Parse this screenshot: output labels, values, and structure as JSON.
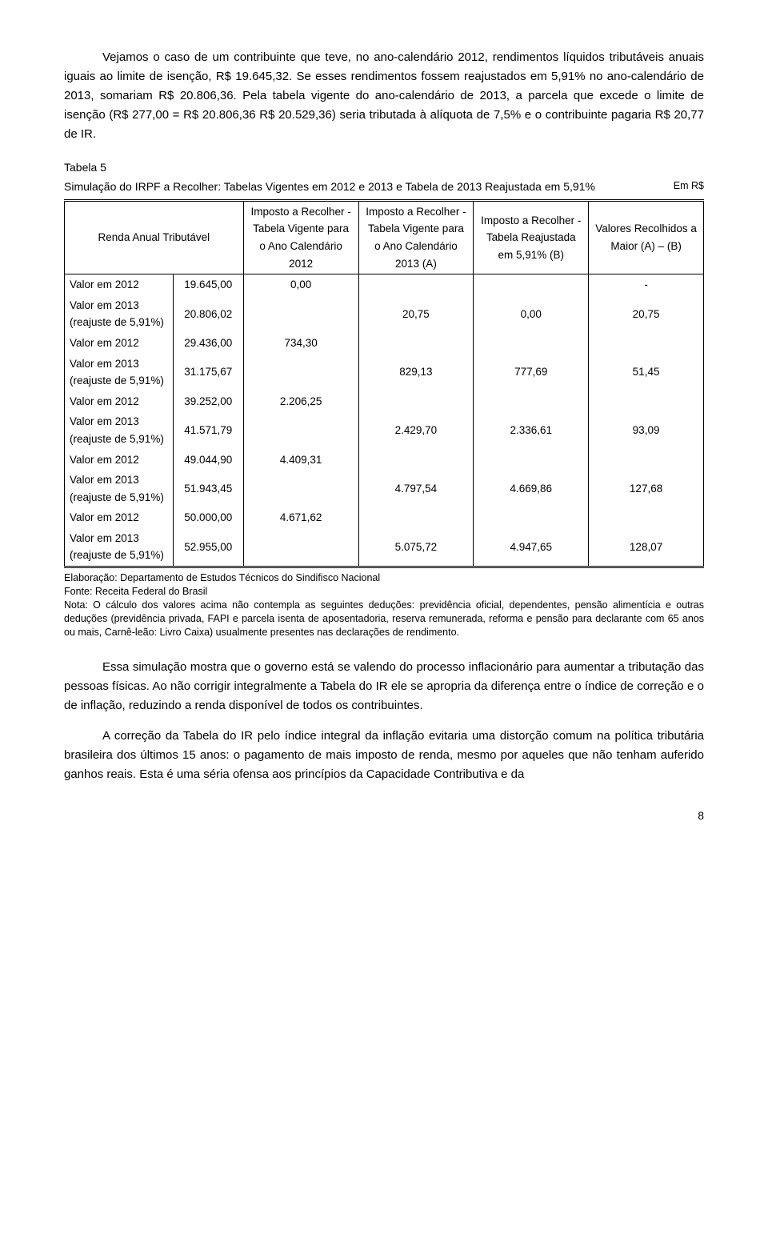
{
  "paragraphs": {
    "p1": "Vejamos o caso de um contribuinte que teve, no ano-calendário 2012, rendimentos líquidos tributáveis anuais iguais ao limite de isenção, R$ 19.645,32. Se esses rendimentos fossem reajustados em 5,91% no ano-calendário de 2013, somariam R$ 20.806,36. Pela tabela vigente do ano-calendário de 2013, a parcela que excede o limite de isenção (R$ 277,00 = R$ 20.806,36 R$ 20.529,36) seria tributada à alíquota de 7,5% e o contribuinte pagaria R$ 20,77 de IR.",
    "p2": "Essa simulação mostra que o governo está se valendo do processo inflacionário para aumentar a tributação das pessoas físicas. Ao não corrigir integralmente a Tabela do IR ele se apropria da diferença entre o índice de correção e o de inflação, reduzindo a renda disponível de todos os contribuintes.",
    "p3": "A correção da Tabela do IR pelo índice integral da inflação evitaria uma distorção comum na política tributária brasileira dos últimos 15 anos: o pagamento de mais imposto de renda, mesmo por aqueles que não tenham auferido ganhos reais. Esta é uma séria ofensa aos princípios da Capacidade Contributiva e da"
  },
  "table": {
    "title": "Tabela 5",
    "subtitle": "Simulação do IRPF a Recolher: Tabelas Vigentes em 2012 e 2013 e Tabela de 2013 Reajustada em 5,91%",
    "unit": "Em R$",
    "headers": {
      "h1": "Renda Anual Tributável",
      "h2": "Imposto a Recolher - Tabela Vigente para o Ano Calendário 2012",
      "h3": "Imposto a Recolher - Tabela Vigente para o Ano Calendário 2013 (A)",
      "h4": "Imposto a Recolher - Tabela Reajustada em 5,91% (B)",
      "h5": "Valores Recolhidos a Maior (A) – (B)"
    },
    "rowlabels": {
      "v2012": "Valor em 2012",
      "v2013": "Valor em 2013 (reajuste de 5,91%)"
    },
    "rows": [
      {
        "a2012": "19.645,00",
        "a2013": "20.806,02",
        "c2012": "0,00",
        "cA": "20,75",
        "cB": "0,00",
        "diff": "20,75",
        "dash": "-"
      },
      {
        "a2012": "29.436,00",
        "a2013": "31.175,67",
        "c2012": "734,30",
        "cA": "829,13",
        "cB": "777,69",
        "diff": "51,45"
      },
      {
        "a2012": "39.252,00",
        "a2013": "41.571,79",
        "c2012": "2.206,25",
        "cA": "2.429,70",
        "cB": "2.336,61",
        "diff": "93,09"
      },
      {
        "a2012": "49.044,90",
        "a2013": "51.943,45",
        "c2012": "4.409,31",
        "cA": "4.797,54",
        "cB": "4.669,86",
        "diff": "127,68"
      },
      {
        "a2012": "50.000,00",
        "a2013": "52.955,00",
        "c2012": "4.671,62",
        "cA": "5.075,72",
        "cB": "4.947,65",
        "diff": "128,07"
      }
    ],
    "notes": {
      "n1": "Elaboração: Departamento de Estudos Técnicos do Sindifisco Nacional",
      "n2": "Fonte: Receita Federal do Brasil",
      "n3": "Nota: O cálculo dos valores acima não contempla as seguintes deduções: previdência oficial, dependentes, pensão alimentícia e outras deduções (previdência privada, FAPI e parcela isenta de aposentadoria, reserva remunerada, reforma e pensão para declarante com 65 anos ou mais, Carnê-leão: Livro Caixa) usualmente presentes nas declarações de rendimento."
    }
  },
  "pagenum": "8"
}
